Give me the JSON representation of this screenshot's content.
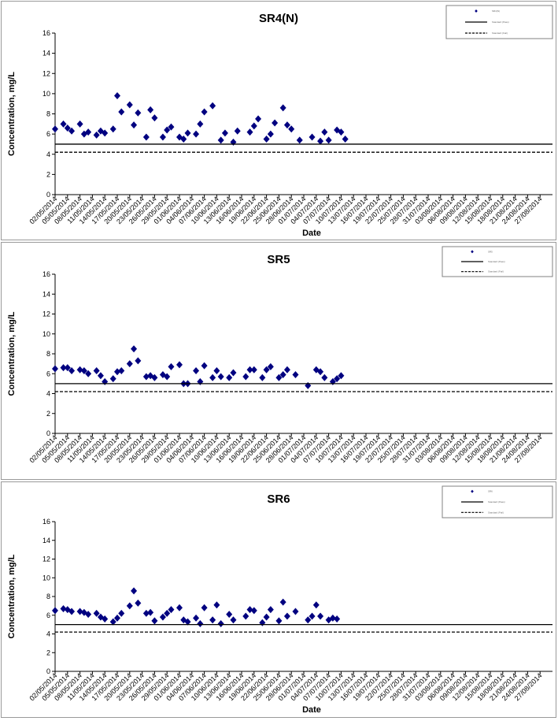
{
  "chart_data": [
    {
      "type": "scatter",
      "title": "SR4(N)",
      "xlabel": "Date",
      "ylabel": "Concentration, mg/L",
      "ylim": [
        0,
        16
      ],
      "yticks": [
        "0",
        "2",
        "4",
        "6",
        "8",
        "10",
        "12",
        "14",
        "16"
      ],
      "x_tick_labels": [
        "02/05/2014",
        "05/05/2014",
        "08/05/2014",
        "11/05/2014",
        "14/05/2014",
        "17/05/2014",
        "20/05/2014",
        "23/05/2014",
        "26/05/2014",
        "29/05/2014",
        "01/06/2014",
        "04/06/2014",
        "07/06/2014",
        "10/06/2014",
        "13/06/2014",
        "16/06/2014",
        "19/06/2014",
        "22/06/2014",
        "25/06/2014",
        "28/06/2014",
        "01/07/2014",
        "04/07/2014",
        "07/07/2014",
        "10/07/2014",
        "13/07/2014",
        "16/07/2014",
        "19/07/2014",
        "22/07/2014",
        "25/07/2014",
        "28/07/2014",
        "31/07/2014",
        "03/08/2014",
        "06/08/2014",
        "09/08/2014",
        "12/08/2014",
        "15/08/2014",
        "18/08/2014",
        "21/08/2014",
        "24/08/2014",
        "27/08/2014"
      ],
      "x_range": [
        "02/05/2014",
        "29/08/2014"
      ],
      "grid": false,
      "legend": {
        "placement": "top-right",
        "entries": [
          "SR4(N)",
          "Standard (Pass)",
          "Standard (Fail)"
        ]
      },
      "series": [
        {
          "name": "SR4(N)",
          "marker": "diamond",
          "color": "#000080",
          "points": [
            [
              0,
              6.5
            ],
            [
              2,
              7.0
            ],
            [
              3,
              6.6
            ],
            [
              4,
              6.3
            ],
            [
              6,
              7.0
            ],
            [
              7,
              6.0
            ],
            [
              8,
              6.2
            ],
            [
              10,
              5.9
            ],
            [
              11,
              6.3
            ],
            [
              12,
              6.1
            ],
            [
              14,
              6.5
            ],
            [
              15,
              9.8
            ],
            [
              16,
              8.2
            ],
            [
              18,
              8.9
            ],
            [
              19,
              6.9
            ],
            [
              20,
              8.1
            ],
            [
              22,
              5.7
            ],
            [
              23,
              8.4
            ],
            [
              24,
              7.6
            ],
            [
              26,
              5.7
            ],
            [
              27,
              6.4
            ],
            [
              28,
              6.7
            ],
            [
              30,
              5.7
            ],
            [
              31,
              5.5
            ],
            [
              32,
              6.1
            ],
            [
              34,
              6.0
            ],
            [
              35,
              7.0
            ],
            [
              36,
              8.2
            ],
            [
              38,
              8.8
            ],
            [
              40,
              5.4
            ],
            [
              41,
              6.1
            ],
            [
              43,
              5.2
            ],
            [
              44,
              6.3
            ],
            [
              47,
              6.2
            ],
            [
              48,
              6.8
            ],
            [
              49,
              7.5
            ],
            [
              51,
              5.5
            ],
            [
              52,
              6.0
            ],
            [
              53,
              7.1
            ],
            [
              55,
              8.6
            ],
            [
              56,
              6.9
            ],
            [
              57,
              6.5
            ],
            [
              59,
              5.4
            ],
            [
              62,
              5.7
            ],
            [
              64,
              5.3
            ],
            [
              65,
              6.2
            ],
            [
              66,
              5.4
            ],
            [
              68,
              6.4
            ],
            [
              69,
              6.2
            ],
            [
              70,
              5.5
            ]
          ]
        },
        {
          "name": "Standard (Pass)",
          "line": "solid",
          "value": 5.0,
          "color": "#000000"
        },
        {
          "name": "Standard (Fail)",
          "line": "dashed",
          "value": 4.2,
          "color": "#000000"
        }
      ]
    },
    {
      "type": "scatter",
      "title": "SR5",
      "xlabel": "",
      "ylabel": "Concentration, mg/L",
      "ylim": [
        0,
        16
      ],
      "yticks": [
        "0",
        "2",
        "4",
        "6",
        "8",
        "10",
        "12",
        "14",
        "16"
      ],
      "x_tick_labels": [
        "02/05/2014",
        "05/05/2014",
        "08/05/2014",
        "11/05/2014",
        "14/05/2014",
        "17/05/2014",
        "20/05/2014",
        "23/05/2014",
        "26/05/2014",
        "29/05/2014",
        "01/06/2014",
        "04/06/2014",
        "07/06/2014",
        "10/06/2014",
        "13/06/2014",
        "16/06/2014",
        "19/06/2014",
        "22/06/2014",
        "25/06/2014",
        "28/06/2014",
        "01/07/2014",
        "04/07/2014",
        "07/07/2014",
        "10/07/2014",
        "13/07/2014",
        "16/07/2014",
        "19/07/2014",
        "22/07/2014",
        "25/07/2014",
        "28/07/2014",
        "31/07/2014",
        "03/08/2014",
        "06/08/2014",
        "09/08/2014",
        "12/08/2014",
        "15/08/2014",
        "18/08/2014",
        "21/08/2014",
        "24/08/2014",
        "27/08/2014"
      ],
      "x_range": [
        "02/05/2014",
        "29/08/2014"
      ],
      "grid": false,
      "legend": {
        "placement": "top-right",
        "entries": [
          "SR5",
          "Standard (Pass)",
          "Standard (Fail)"
        ]
      },
      "series": [
        {
          "name": "SR5",
          "marker": "diamond",
          "color": "#000080",
          "points": [
            [
              0,
              6.5
            ],
            [
              2,
              6.6
            ],
            [
              3,
              6.6
            ],
            [
              4,
              6.3
            ],
            [
              6,
              6.4
            ],
            [
              7,
              6.3
            ],
            [
              8,
              6.0
            ],
            [
              10,
              6.3
            ],
            [
              11,
              5.8
            ],
            [
              12,
              5.2
            ],
            [
              14,
              5.5
            ],
            [
              15,
              6.2
            ],
            [
              16,
              6.3
            ],
            [
              18,
              7.0
            ],
            [
              19,
              8.5
            ],
            [
              20,
              7.3
            ],
            [
              22,
              5.7
            ],
            [
              23,
              5.8
            ],
            [
              24,
              5.6
            ],
            [
              26,
              5.9
            ],
            [
              27,
              5.7
            ],
            [
              28,
              6.7
            ],
            [
              30,
              6.9
            ],
            [
              31,
              5.0
            ],
            [
              32,
              5.0
            ],
            [
              34,
              6.3
            ],
            [
              35,
              5.2
            ],
            [
              36,
              6.8
            ],
            [
              38,
              5.6
            ],
            [
              39,
              6.3
            ],
            [
              40,
              5.7
            ],
            [
              42,
              5.6
            ],
            [
              43,
              6.1
            ],
            [
              46,
              5.7
            ],
            [
              47,
              6.4
            ],
            [
              48,
              6.4
            ],
            [
              50,
              5.6
            ],
            [
              51,
              6.4
            ],
            [
              52,
              6.7
            ],
            [
              54,
              5.6
            ],
            [
              55,
              5.9
            ],
            [
              56,
              6.4
            ],
            [
              58,
              5.9
            ],
            [
              61,
              4.8
            ],
            [
              63,
              6.4
            ],
            [
              64,
              6.2
            ],
            [
              65,
              5.6
            ],
            [
              67,
              5.2
            ],
            [
              68,
              5.5
            ],
            [
              69,
              5.8
            ]
          ]
        },
        {
          "name": "Standard (Pass)",
          "line": "solid",
          "value": 5.0,
          "color": "#000000"
        },
        {
          "name": "Standard (Fail)",
          "line": "dashed",
          "value": 4.2,
          "color": "#000000"
        }
      ]
    },
    {
      "type": "scatter",
      "title": "SR6",
      "xlabel": "Date",
      "ylabel": "Concentration, mg/L",
      "ylim": [
        0,
        16
      ],
      "yticks": [
        "0",
        "2",
        "4",
        "6",
        "8",
        "10",
        "12",
        "14",
        "16"
      ],
      "x_tick_labels": [
        "02/05/2014",
        "05/05/2014",
        "08/05/2014",
        "11/05/2014",
        "14/05/2014",
        "17/05/2014",
        "20/05/2014",
        "23/05/2014",
        "26/05/2014",
        "29/05/2014",
        "01/06/2014",
        "04/06/2014",
        "07/06/2014",
        "10/06/2014",
        "13/06/2014",
        "16/06/2014",
        "19/06/2014",
        "22/06/2014",
        "25/06/2014",
        "28/06/2014",
        "01/07/2014",
        "04/07/2014",
        "07/07/2014",
        "10/07/2014",
        "13/07/2014",
        "16/07/2014",
        "19/07/2014",
        "22/07/2014",
        "25/07/2014",
        "28/07/2014",
        "31/07/2014",
        "03/08/2014",
        "06/08/2014",
        "09/08/2014",
        "12/08/2014",
        "15/08/2014",
        "18/08/2014",
        "21/08/2014",
        "24/08/2014",
        "27/08/2014"
      ],
      "x_range": [
        "02/05/2014",
        "29/08/2014"
      ],
      "grid": false,
      "legend": {
        "placement": "top-right",
        "entries": [
          "SR6",
          "Standard (Pass)",
          "Standard (Fail)"
        ]
      },
      "series": [
        {
          "name": "SR6",
          "marker": "diamond",
          "color": "#000080",
          "points": [
            [
              0,
              6.5
            ],
            [
              2,
              6.7
            ],
            [
              3,
              6.6
            ],
            [
              4,
              6.4
            ],
            [
              6,
              6.4
            ],
            [
              7,
              6.3
            ],
            [
              8,
              6.1
            ],
            [
              10,
              6.2
            ],
            [
              11,
              5.8
            ],
            [
              12,
              5.6
            ],
            [
              14,
              5.3
            ],
            [
              15,
              5.7
            ],
            [
              16,
              6.2
            ],
            [
              18,
              7.0
            ],
            [
              19,
              8.6
            ],
            [
              20,
              7.3
            ],
            [
              22,
              6.2
            ],
            [
              23,
              6.3
            ],
            [
              24,
              5.4
            ],
            [
              26,
              5.8
            ],
            [
              27,
              6.2
            ],
            [
              28,
              6.6
            ],
            [
              30,
              6.8
            ],
            [
              31,
              5.5
            ],
            [
              32,
              5.3
            ],
            [
              34,
              5.7
            ],
            [
              35,
              5.1
            ],
            [
              36,
              6.8
            ],
            [
              38,
              5.5
            ],
            [
              39,
              7.1
            ],
            [
              40,
              5.1
            ],
            [
              42,
              6.1
            ],
            [
              43,
              5.5
            ],
            [
              46,
              5.9
            ],
            [
              47,
              6.6
            ],
            [
              48,
              6.5
            ],
            [
              50,
              5.2
            ],
            [
              51,
              5.8
            ],
            [
              52,
              6.6
            ],
            [
              54,
              5.4
            ],
            [
              55,
              7.4
            ],
            [
              56,
              5.9
            ],
            [
              58,
              6.4
            ],
            [
              61,
              5.5
            ],
            [
              62,
              5.9
            ],
            [
              63,
              7.1
            ],
            [
              64,
              5.9
            ],
            [
              66,
              5.5
            ],
            [
              67,
              5.7
            ],
            [
              68,
              5.6
            ]
          ]
        },
        {
          "name": "Standard (Pass)",
          "line": "solid",
          "value": 5.0,
          "color": "#000000"
        },
        {
          "name": "Standard (Fail)",
          "line": "dashed",
          "value": 4.2,
          "color": "#000000"
        }
      ]
    }
  ]
}
